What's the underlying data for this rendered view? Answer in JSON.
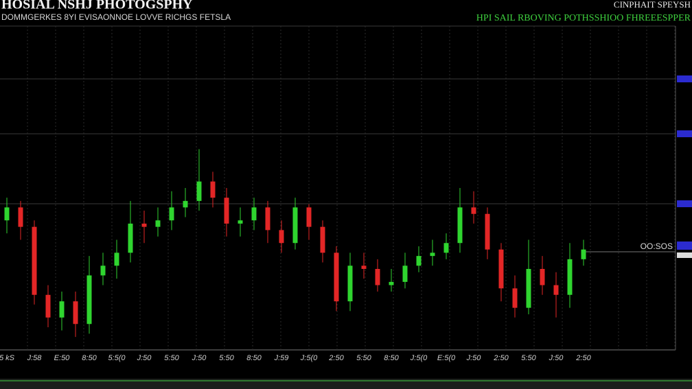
{
  "chart_data": {
    "type": "candlestick",
    "title": "HOSIAL NSHJ PHOTOGSPHY",
    "subtitle": "DOMMGERKES 8YI EVISAONNOE LOVVE RICHGS FETSLA",
    "top_right_title": "CINPHAIT SPEYSH",
    "top_right_legend": "HPI SAIL RBOVING POTHSSHIOO FHREEESPPER",
    "price_line_label": "OO:SOS",
    "ylim": [
      0,
      100
    ],
    "up_color": "#2fd52f",
    "down_color": "#e32626",
    "categories": [
      "5 kS",
      null,
      "J:58",
      null,
      "E:50",
      null,
      "8:50",
      null,
      "5:5(0",
      null,
      "J:50",
      null,
      "5:50",
      null,
      "J:50",
      null,
      "5:50",
      null,
      "8:50",
      null,
      "J:59",
      null,
      "J:5(0",
      null,
      "2:50",
      null,
      "5:50",
      null,
      "8:50",
      null,
      "J:5(0",
      null,
      "E:5(0",
      null,
      "J:50",
      null,
      "2:50",
      null,
      "5:50",
      null,
      "J:50",
      null,
      "2:50"
    ],
    "open": [
      40,
      44,
      38,
      17,
      10,
      15,
      8,
      23,
      26,
      30,
      39,
      38,
      40,
      44,
      46,
      52,
      47,
      39,
      40,
      44,
      37,
      33,
      44,
      38,
      30,
      15,
      26,
      25,
      20,
      21,
      26,
      29,
      30,
      33,
      44,
      42,
      31,
      19,
      13,
      25,
      20,
      17,
      28
    ],
    "close": [
      44,
      38,
      17,
      10,
      15,
      8,
      23,
      26,
      30,
      39,
      38,
      40,
      44,
      46,
      52,
      47,
      39,
      40,
      44,
      37,
      33,
      44,
      38,
      30,
      15,
      26,
      25,
      20,
      21,
      26,
      29,
      30,
      33,
      44,
      42,
      31,
      19,
      13,
      25,
      20,
      17,
      28,
      31
    ],
    "high": [
      47,
      46,
      40,
      20,
      18,
      18,
      29,
      30,
      34,
      46,
      43,
      44,
      49,
      50,
      62,
      55,
      50,
      44,
      47,
      46,
      40,
      47,
      45,
      40,
      32,
      30,
      30,
      28,
      25,
      30,
      32,
      34,
      36,
      50,
      49,
      44,
      33,
      23,
      34,
      29,
      24,
      33,
      34
    ],
    "low": [
      36,
      34,
      14,
      7,
      6,
      4,
      5,
      20,
      22,
      27,
      33,
      35,
      37,
      41,
      43,
      44,
      35,
      35,
      37,
      33,
      30,
      31,
      34,
      27,
      12,
      12,
      22,
      18,
      18,
      19,
      24,
      26,
      28,
      30,
      39,
      28,
      15,
      10,
      11,
      17,
      10,
      13,
      26
    ]
  }
}
